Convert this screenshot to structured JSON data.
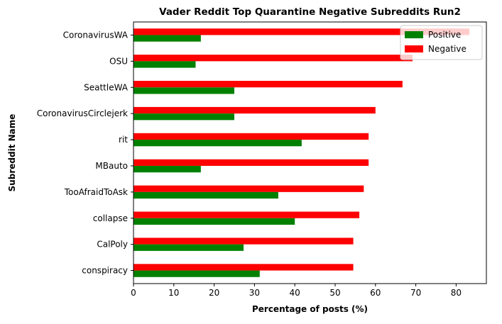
{
  "chart_data": {
    "type": "bar",
    "orientation": "horizontal",
    "title": "Vader Reddit Top Quarantine Negative Subreddits Run2",
    "xlabel": "Percentage of posts (%)",
    "ylabel": "Subreddit Name",
    "xlim": [
      0,
      87.5
    ],
    "xticks": [
      0,
      10,
      20,
      30,
      40,
      50,
      60,
      70,
      80
    ],
    "grid": false,
    "legend_position": "upper right",
    "categories": [
      "CoronavirusWA",
      "OSU",
      "SeattleWA",
      "CoronavirusCirclejerk",
      "rit",
      "MBauto",
      "TooAfraidToAsk",
      "collapse",
      "CalPoly",
      "conspiracy"
    ],
    "series": [
      {
        "name": "Positive",
        "color": "#008000",
        "values": [
          16.7,
          15.4,
          25.0,
          25.0,
          41.7,
          16.7,
          35.9,
          40.0,
          27.3,
          31.3
        ]
      },
      {
        "name": "Negative",
        "color": "#ff0000",
        "values": [
          83.3,
          69.2,
          66.7,
          60.0,
          58.3,
          58.3,
          57.1,
          56.0,
          54.5,
          54.5
        ]
      }
    ]
  }
}
